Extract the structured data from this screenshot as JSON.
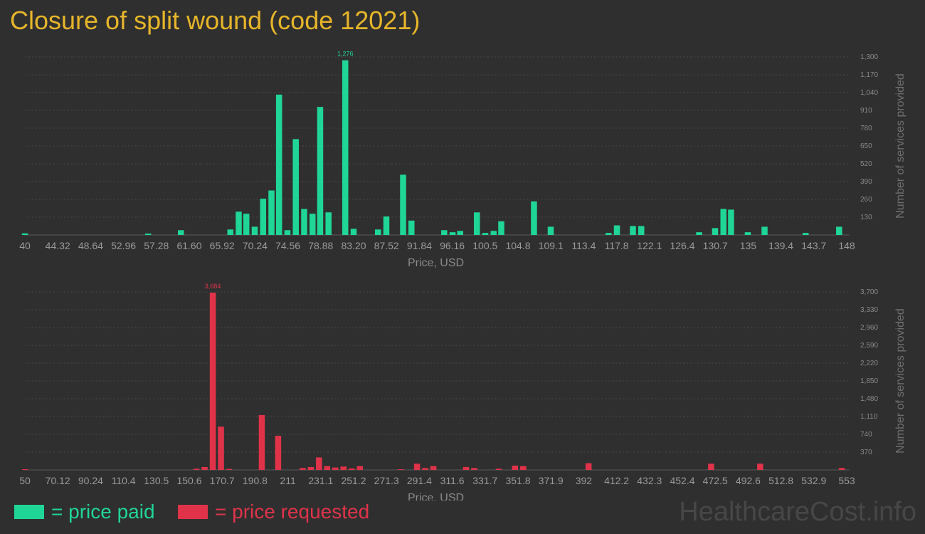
{
  "title": "Closure of split wound (code 12021)",
  "watermark": "HealthcareCost.info",
  "legend": [
    {
      "label": "= price paid",
      "color": "#1fd697"
    },
    {
      "label": "= price requested",
      "color": "#e0334a"
    }
  ],
  "chart_data": [
    {
      "type": "bar",
      "color": "#1fd697",
      "xlabel": "Price, USD",
      "ylabel": "Number of services provided",
      "x_tick_labels": [
        "40",
        "44.32",
        "48.64",
        "52.96",
        "57.28",
        "61.60",
        "65.92",
        "70.24",
        "74.56",
        "78.88",
        "83.20",
        "87.52",
        "91.84",
        "96.16",
        "100.5",
        "104.8",
        "109.1",
        "113.4",
        "117.8",
        "122.1",
        "126.4",
        "130.7",
        "135",
        "139.4",
        "143.7",
        "148"
      ],
      "x_range": [
        40,
        148
      ],
      "y_ticks": [
        130,
        260,
        390,
        520,
        650,
        780,
        910,
        1040,
        1170,
        1300
      ],
      "y_tick_labels": [
        "130",
        "260",
        "390",
        "520",
        "650",
        "780",
        "910",
        "1,040",
        "1,170",
        "1,300"
      ],
      "ylim": [
        0,
        1300
      ],
      "grid": true,
      "peak_label": "1,276",
      "bars": [
        {
          "x": 40,
          "value": 12
        },
        {
          "x": 56.2,
          "value": 10
        },
        {
          "x": 60.5,
          "value": 35
        },
        {
          "x": 67,
          "value": 40
        },
        {
          "x": 68.1,
          "value": 170
        },
        {
          "x": 69.1,
          "value": 155
        },
        {
          "x": 70.2,
          "value": 60
        },
        {
          "x": 71.3,
          "value": 265
        },
        {
          "x": 72.4,
          "value": 325
        },
        {
          "x": 73.4,
          "value": 1025
        },
        {
          "x": 74.5,
          "value": 35
        },
        {
          "x": 75.6,
          "value": 700
        },
        {
          "x": 76.7,
          "value": 190
        },
        {
          "x": 77.8,
          "value": 155
        },
        {
          "x": 78.8,
          "value": 935
        },
        {
          "x": 79.9,
          "value": 165
        },
        {
          "x": 82.1,
          "value": 1276
        },
        {
          "x": 83.2,
          "value": 45
        },
        {
          "x": 86.4,
          "value": 40
        },
        {
          "x": 87.5,
          "value": 135
        },
        {
          "x": 89.7,
          "value": 440
        },
        {
          "x": 90.8,
          "value": 105
        },
        {
          "x": 95.1,
          "value": 35
        },
        {
          "x": 96.2,
          "value": 20
        },
        {
          "x": 97.2,
          "value": 30
        },
        {
          "x": 99.4,
          "value": 165
        },
        {
          "x": 100.5,
          "value": 15
        },
        {
          "x": 101.6,
          "value": 30
        },
        {
          "x": 102.6,
          "value": 100
        },
        {
          "x": 106.9,
          "value": 245
        },
        {
          "x": 109.1,
          "value": 60
        },
        {
          "x": 116.7,
          "value": 15
        },
        {
          "x": 117.8,
          "value": 70
        },
        {
          "x": 119.9,
          "value": 65
        },
        {
          "x": 121,
          "value": 65
        },
        {
          "x": 128.6,
          "value": 20
        },
        {
          "x": 130.7,
          "value": 50
        },
        {
          "x": 131.8,
          "value": 190
        },
        {
          "x": 132.8,
          "value": 185
        },
        {
          "x": 135,
          "value": 20
        },
        {
          "x": 137.2,
          "value": 60
        },
        {
          "x": 142.6,
          "value": 15
        },
        {
          "x": 147,
          "value": 60
        }
      ]
    },
    {
      "type": "bar",
      "color": "#e0334a",
      "xlabel": "Price, USD",
      "ylabel": "Number of services provided",
      "x_tick_labels": [
        "50",
        "70.12",
        "90.24",
        "110.4",
        "130.5",
        "150.6",
        "170.7",
        "190.8",
        "211",
        "231.1",
        "251.2",
        "271.3",
        "291.4",
        "311.6",
        "331.7",
        "351.8",
        "371.9",
        "392",
        "412.2",
        "432.3",
        "452.4",
        "472.5",
        "492.6",
        "512.8",
        "532.9",
        "553"
      ],
      "x_range": [
        50,
        553
      ],
      "y_ticks": [
        370,
        740,
        1110,
        1480,
        1850,
        2220,
        2590,
        2960,
        3330,
        3700
      ],
      "y_tick_labels": [
        "370",
        "740",
        "1,110",
        "1,480",
        "1,850",
        "2,220",
        "2,590",
        "2,960",
        "3,330",
        "3,700"
      ],
      "ylim": [
        0,
        3700
      ],
      "grid": true,
      "peak_label": "3,684",
      "bars": [
        {
          "x": 50,
          "value": 15
        },
        {
          "x": 155,
          "value": 25
        },
        {
          "x": 160,
          "value": 60
        },
        {
          "x": 165,
          "value": 3684
        },
        {
          "x": 170,
          "value": 900
        },
        {
          "x": 175,
          "value": 20
        },
        {
          "x": 195,
          "value": 1140
        },
        {
          "x": 205,
          "value": 710
        },
        {
          "x": 220,
          "value": 40
        },
        {
          "x": 225,
          "value": 60
        },
        {
          "x": 230,
          "value": 260
        },
        {
          "x": 235,
          "value": 80
        },
        {
          "x": 240,
          "value": 50
        },
        {
          "x": 245,
          "value": 70
        },
        {
          "x": 250,
          "value": 30
        },
        {
          "x": 255,
          "value": 80
        },
        {
          "x": 280,
          "value": 15
        },
        {
          "x": 290,
          "value": 130
        },
        {
          "x": 295,
          "value": 40
        },
        {
          "x": 300,
          "value": 80
        },
        {
          "x": 320,
          "value": 60
        },
        {
          "x": 325,
          "value": 40
        },
        {
          "x": 340,
          "value": 25
        },
        {
          "x": 350,
          "value": 90
        },
        {
          "x": 355,
          "value": 80
        },
        {
          "x": 395,
          "value": 140
        },
        {
          "x": 470,
          "value": 130
        },
        {
          "x": 500,
          "value": 130
        },
        {
          "x": 550,
          "value": 40
        }
      ]
    }
  ]
}
